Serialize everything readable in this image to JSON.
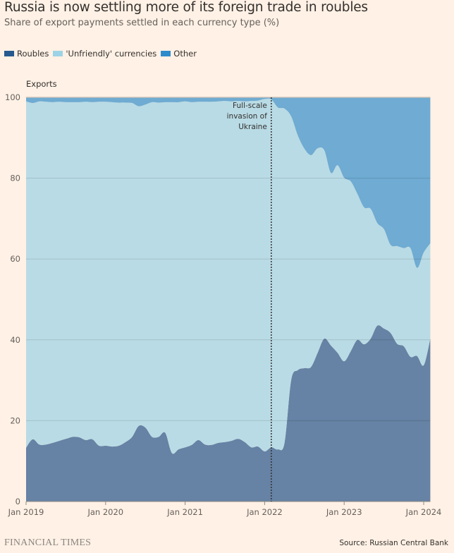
{
  "title": "Russia is now settling more of its foreign trade in roubles",
  "subtitle": "Share of export payments settled in each currency type (%)",
  "legend": [
    {
      "label": "Roubles",
      "color": "#265a8f"
    },
    {
      "label": "'Unfriendly' currencies",
      "color": "#9dd3e6"
    },
    {
      "label": "Other",
      "color": "#2e8bcb"
    }
  ],
  "panel_label": "Exports",
  "footer": {
    "brand": "FINANCIAL TIMES",
    "source": "Source: Russian Central Bank"
  },
  "chart_data": {
    "type": "area",
    "stacked": true,
    "title": "Russia is now settling more of its foreign trade in roubles",
    "subtitle": "Share of export payments settled in each currency type (%)",
    "panel": "Exports",
    "xlabel": "",
    "ylabel": "",
    "ylim": [
      0,
      100
    ],
    "yticks": [
      0,
      20,
      40,
      60,
      80,
      100
    ],
    "xticks": [
      "Jan 2019",
      "Jan 2020",
      "Jan 2021",
      "Jan 2022",
      "Jan 2023",
      "Jan 2024"
    ],
    "grid": true,
    "legend_position": "top-left",
    "x": [
      "2019-01",
      "2019-02",
      "2019-03",
      "2019-04",
      "2019-05",
      "2019-06",
      "2019-07",
      "2019-08",
      "2019-09",
      "2019-10",
      "2019-11",
      "2019-12",
      "2020-01",
      "2020-02",
      "2020-03",
      "2020-04",
      "2020-05",
      "2020-06",
      "2020-07",
      "2020-08",
      "2020-09",
      "2020-10",
      "2020-11",
      "2020-12",
      "2021-01",
      "2021-02",
      "2021-03",
      "2021-04",
      "2021-05",
      "2021-06",
      "2021-07",
      "2021-08",
      "2021-09",
      "2021-10",
      "2021-11",
      "2021-12",
      "2022-01",
      "2022-02",
      "2022-03",
      "2022-04",
      "2022-05",
      "2022-06",
      "2022-07",
      "2022-08",
      "2022-09",
      "2022-10",
      "2022-11",
      "2022-12",
      "2023-01",
      "2023-02",
      "2023-03",
      "2023-04",
      "2023-05",
      "2023-06",
      "2023-07",
      "2023-08",
      "2023-09",
      "2023-10",
      "2023-11",
      "2023-12",
      "2024-01",
      "2024-02"
    ],
    "series": [
      {
        "name": "Roubles",
        "color": "#6682a4",
        "values": [
          13.3,
          15.4,
          14.1,
          14.1,
          14.5,
          15.0,
          15.5,
          16.0,
          15.9,
          15.2,
          15.4,
          13.8,
          13.8,
          13.6,
          13.8,
          14.7,
          16.0,
          18.7,
          18.3,
          16.0,
          16.0,
          17.0,
          12.0,
          12.9,
          13.4,
          14.0,
          15.2,
          14.1,
          14.0,
          14.5,
          14.7,
          15.0,
          15.5,
          14.7,
          13.4,
          13.6,
          12.4,
          13.4,
          12.9,
          14.5,
          30.0,
          32.5,
          33.0,
          33.3,
          36.8,
          40.3,
          38.6,
          36.8,
          34.7,
          37.2,
          40.0,
          38.9,
          40.3,
          43.5,
          42.8,
          41.7,
          39.0,
          38.4,
          35.8,
          36.0,
          33.7,
          40.3
        ]
      },
      {
        "name": "'Unfriendly' currencies",
        "color": "#b9dbe5",
        "values": [
          85.7,
          83.2,
          84.9,
          84.8,
          84.3,
          83.9,
          83.3,
          82.8,
          82.9,
          83.7,
          83.4,
          85.1,
          85.1,
          85.2,
          84.9,
          84.0,
          82.6,
          79.1,
          79.9,
          82.8,
          82.7,
          81.8,
          86.8,
          85.9,
          85.6,
          84.8,
          83.7,
          84.8,
          84.9,
          84.5,
          84.4,
          84.0,
          83.6,
          84.3,
          85.7,
          85.6,
          87.2,
          86.1,
          84.6,
          82.7,
          65.3,
          58.1,
          54.3,
          52.4,
          50.6,
          46.6,
          42.7,
          46.4,
          45.4,
          42.0,
          36.1,
          33.9,
          32.1,
          25.4,
          24.6,
          21.8,
          24.2,
          24.3,
          26.9,
          21.8,
          27.9,
          23.6
        ]
      },
      {
        "name": "Other",
        "color": "#6fabd2",
        "values": [
          1.0,
          1.4,
          1.0,
          1.1,
          1.2,
          1.1,
          1.2,
          1.2,
          1.2,
          1.1,
          1.2,
          1.1,
          1.1,
          1.2,
          1.3,
          1.3,
          1.4,
          2.2,
          1.8,
          1.2,
          1.3,
          1.2,
          1.2,
          1.2,
          1.0,
          1.2,
          1.1,
          1.1,
          1.1,
          1.0,
          0.9,
          1.0,
          0.9,
          1.0,
          0.9,
          0.8,
          0.4,
          0.5,
          2.5,
          2.8,
          4.7,
          9.4,
          12.7,
          14.3,
          12.6,
          13.1,
          18.7,
          16.8,
          19.9,
          20.8,
          23.9,
          27.2,
          27.6,
          31.1,
          32.6,
          36.5,
          36.8,
          37.3,
          37.3,
          42.2,
          38.4,
          36.1
        ]
      }
    ],
    "annotations": [
      {
        "x": "2022-02",
        "text": [
          "Full-scale",
          "invasion of",
          "Ukraine"
        ],
        "style": "dotted vertical line"
      }
    ]
  }
}
